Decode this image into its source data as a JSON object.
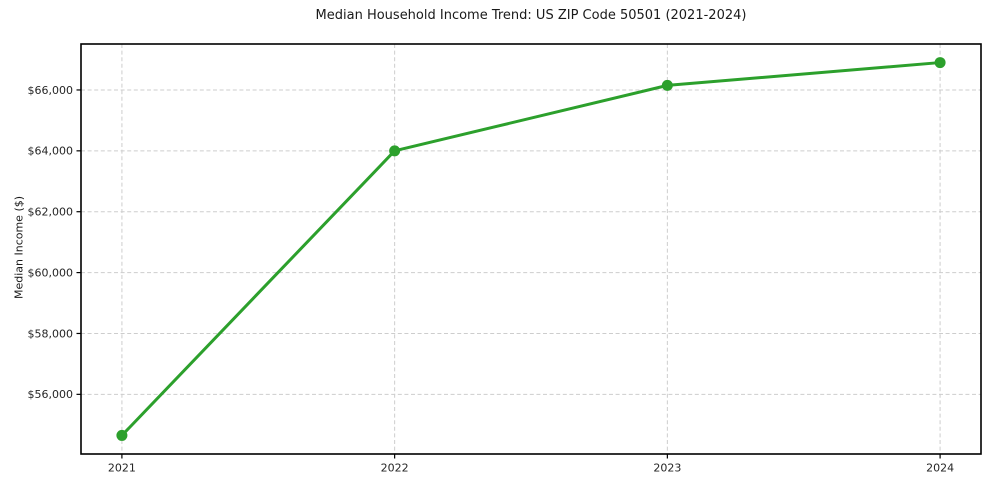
{
  "title": "Median Household Income Trend: US ZIP Code 50501 (2021-2024)",
  "axes": {
    "ylabel": "Median Income ($)",
    "xlabel": ""
  },
  "chart_data": {
    "type": "line",
    "title": "Median Household Income Trend: US ZIP Code 50501 (2021-2024)",
    "xlabel": "",
    "ylabel": "Median Income ($)",
    "x": [
      2021,
      2022,
      2023,
      2024
    ],
    "x_tick_labels": [
      "2021",
      "2022",
      "2023",
      "2024"
    ],
    "series": [
      {
        "name": "Median Income",
        "values": [
          54650,
          64000,
          66150,
          66900
        ]
      }
    ],
    "y_ticks": [
      56000,
      58000,
      60000,
      62000,
      64000,
      66000
    ],
    "y_tick_labels": [
      "$56,000",
      "$58,000",
      "$60,000",
      "$62,000",
      "$64,000",
      "$66,000"
    ],
    "xlim": [
      2020.85,
      2024.15
    ],
    "ylim": [
      54040,
      67510
    ],
    "grid": true,
    "grid_style": "dashed",
    "legend": "none",
    "colors": {
      "line": "#2ca02c",
      "marker": "#2ca02c",
      "grid": "#cdcdcd",
      "spine": "#000000",
      "text": "#262626"
    },
    "marker": "circle",
    "marker_radius": 5.5,
    "line_width": 3
  }
}
